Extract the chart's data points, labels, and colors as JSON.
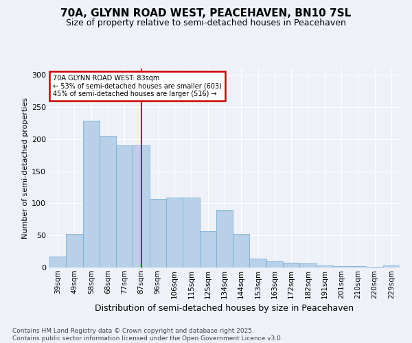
{
  "title": "70A, GLYNN ROAD WEST, PEACEHAVEN, BN10 7SL",
  "subtitle": "Size of property relative to semi-detached houses in Peacehaven",
  "xlabel": "Distribution of semi-detached houses by size in Peacehaven",
  "ylabel": "Number of semi-detached properties",
  "categories": [
    "39sqm",
    "49sqm",
    "58sqm",
    "68sqm",
    "77sqm",
    "87sqm",
    "96sqm",
    "106sqm",
    "115sqm",
    "125sqm",
    "134sqm",
    "144sqm",
    "153sqm",
    "163sqm",
    "172sqm",
    "182sqm",
    "191sqm",
    "201sqm",
    "210sqm",
    "220sqm",
    "229sqm"
  ],
  "values": [
    17,
    52,
    229,
    205,
    190,
    190,
    107,
    109,
    109,
    57,
    90,
    52,
    14,
    10,
    7,
    6,
    3,
    2,
    2,
    1,
    3
  ],
  "bar_color": "#b8d0e8",
  "bar_edge_color": "#7aafd4",
  "vline_x": 5.0,
  "vline_color": "#cc0000",
  "ylim": [
    0,
    310
  ],
  "yticks": [
    0,
    50,
    100,
    150,
    200,
    250,
    300
  ],
  "annotation_text": "70A GLYNN ROAD WEST: 83sqm\n← 53% of semi-detached houses are smaller (603)\n45% of semi-detached houses are larger (516) →",
  "annotation_box_color": "#ffffff",
  "annotation_box_edge_color": "#cc0000",
  "footnote": "Contains HM Land Registry data © Crown copyright and database right 2025.\nContains public sector information licensed under the Open Government Licence v3.0.",
  "background_color": "#eef2f8",
  "plot_bg_color": "#eef2f8",
  "title_fontsize": 11,
  "subtitle_fontsize": 9,
  "ylabel_fontsize": 8,
  "xlabel_fontsize": 9,
  "tick_fontsize": 7.5,
  "footnote_fontsize": 6.5
}
